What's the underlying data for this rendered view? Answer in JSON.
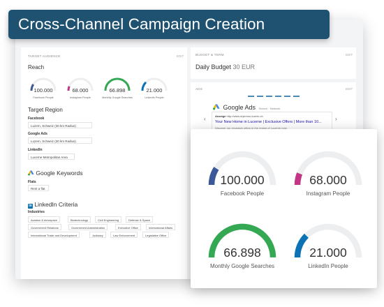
{
  "banner": {
    "title": "Cross-Channel Campaign Creation"
  },
  "colors": {
    "banner": "#1f5271",
    "facebook": "#3b5998",
    "instagram": "#c13584",
    "google": "#34a853",
    "linkedin": "#0a72b5",
    "track": "#eceef0"
  },
  "target": {
    "header": "TARGET AUDIENCE",
    "edit": "EDIT",
    "reach_title": "Reach",
    "gauges": [
      {
        "value": "100.000",
        "label": "Facebook People",
        "fraction": 0.18
      },
      {
        "value": "68.000",
        "label": "Instagram People",
        "fraction": 0.12
      },
      {
        "value": "66.898",
        "label": "Monthly Google Searches",
        "fraction": 1.0
      },
      {
        "value": "21.000",
        "label": "LinkedIn People",
        "fraction": 0.25
      }
    ],
    "region_title": "Target Region",
    "facebook_label": "Facebook",
    "facebook_value": "Luzern, Schweiz (30 km Radius)",
    "google_label": "Google Ads",
    "google_value": "Luzern, Schweiz (30 km Radius)",
    "linkedin_label": "LinkedIn",
    "linkedin_value": "Lucerne Metropolitan Area",
    "keywords_title": "Google Keywords",
    "keywords_label": "Flats",
    "keywords_value": "Rent a flat",
    "linkedin_criteria_title": "LinkedIn Criteria",
    "industries_label": "Industries",
    "industries": [
      "Aviation & Aerospace",
      "Biotechnology",
      "Civil Engineering",
      "Defense & Space",
      "Government Relations",
      "Government Administration",
      "Executive Office",
      "International Affairs",
      "International Trade and Development",
      "Judiciary",
      "Law Enforcement",
      "Legislative Office"
    ]
  },
  "budget": {
    "header": "BUDGET & TERM",
    "edit": "EDIT",
    "label": "Daily Budget",
    "value": "30 EUR"
  },
  "ads": {
    "header": "ADS",
    "edit": "EDIT",
    "google_ads_title": "Google Ads",
    "google_ads_sub": "Search · Network",
    "ad_label": "Anzeige",
    "ad_url": "http://www.myimmo-luzern.ch",
    "ad_headline": "Your New Home in Lucerne | Exclusive Offers | More than 10...",
    "ad_desc": "Discover our exclusive offers in the region of Lucerne now."
  },
  "stats": [
    {
      "value": "100.000",
      "label": "Facebook People",
      "fraction": 0.18
    },
    {
      "value": "68.000",
      "label": "Instagram People",
      "fraction": 0.12
    },
    {
      "value": "66.898",
      "label": "Monthly Google Searches",
      "fraction": 1.0
    },
    {
      "value": "21.000",
      "label": "LinkedIn People",
      "fraction": 0.25
    }
  ]
}
